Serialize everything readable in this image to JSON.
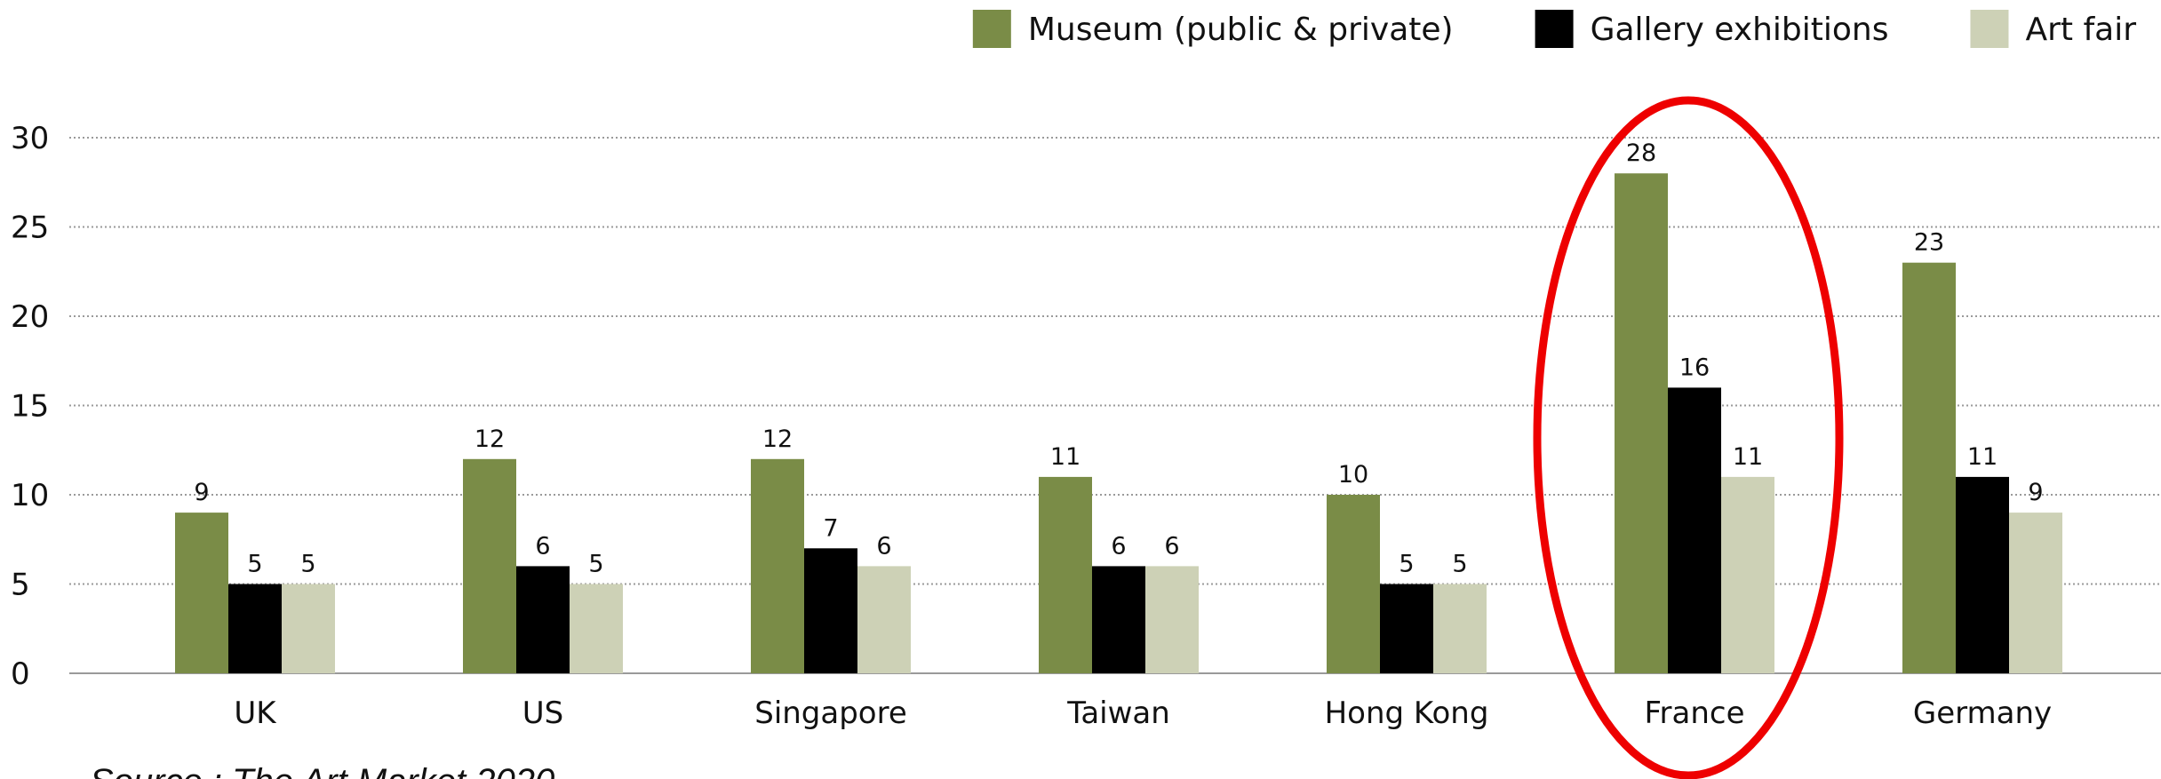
{
  "chart_data": {
    "type": "bar",
    "categories": [
      "UK",
      "US",
      "Singapore",
      "Taiwan",
      "Hong Kong",
      "France",
      "Germany"
    ],
    "series": [
      {
        "name": "Museum (public & private)",
        "color": "#7a8c47",
        "values": [
          9,
          12,
          12,
          11,
          10,
          28,
          23
        ]
      },
      {
        "name": "Gallery exhibitions",
        "color": "#000000",
        "values": [
          5,
          6,
          7,
          6,
          5,
          16,
          11
        ]
      },
      {
        "name": "Art fair",
        "color": "#cdd1b6",
        "values": [
          5,
          5,
          6,
          6,
          5,
          11,
          9
        ]
      }
    ],
    "ylim": [
      0,
      30
    ],
    "yticks": [
      0,
      5,
      10,
      15,
      20,
      25,
      30
    ],
    "grid": true,
    "legend": "top-right",
    "source": "Source : The Art Market 2020"
  }
}
